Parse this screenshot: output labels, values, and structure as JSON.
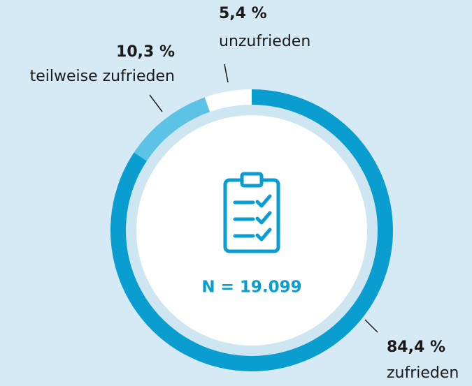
{
  "chart_data": {
    "type": "donut",
    "categories": [
      "zufrieden",
      "teilweise zufrieden",
      "unzufrieden"
    ],
    "values": [
      84.4,
      10.3,
      5.4
    ],
    "value_labels": [
      "84,4 %",
      "10,3 %",
      "5,4 %"
    ],
    "colors": [
      "#0a9dcf",
      "#5cc3e6",
      "#ffffff"
    ],
    "annotation": "N = 19.099"
  }
}
